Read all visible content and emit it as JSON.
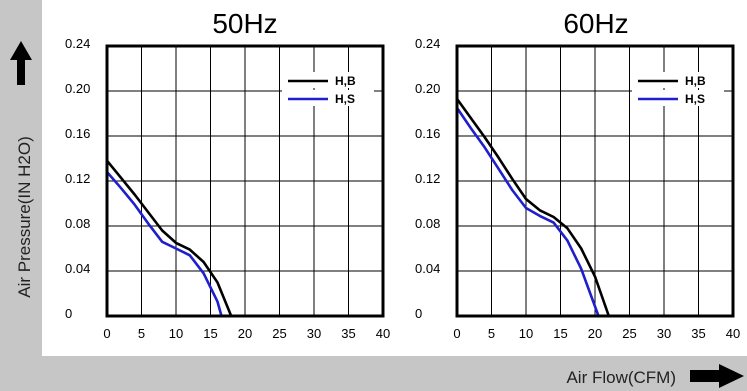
{
  "colors": {
    "band": "#c6c6c6",
    "grid": "#000000",
    "frame": "#000000",
    "series": [
      "#000000",
      "#1f1fcc"
    ],
    "arrow": "#000000"
  },
  "axis_labels": {
    "y": "Air Pressure(IN H2O)",
    "x": "Air Flow(CFM)"
  },
  "chart_data": [
    {
      "type": "line",
      "title": "50Hz",
      "xlabel": "Air Flow(CFM)",
      "ylabel": "Air Pressure(IN H2O)",
      "xlim": [
        0,
        40
      ],
      "ylim": [
        0,
        0.24
      ],
      "xticks": [
        "0",
        "5",
        "10",
        "15",
        "20",
        "25",
        "30",
        "35",
        "40"
      ],
      "yticks": [
        "0",
        "0.04",
        "0.08",
        "0.12",
        "0.16",
        "0.20",
        "0.24"
      ],
      "grid": true,
      "legend_position": "top-right",
      "series": [
        {
          "name": "H,B",
          "x": [
            0,
            2,
            4,
            6,
            8,
            10,
            12,
            14,
            16,
            18
          ],
          "y": [
            0.138,
            0.123,
            0.108,
            0.092,
            0.076,
            0.065,
            0.059,
            0.048,
            0.03,
            0
          ]
        },
        {
          "name": "H,S",
          "x": [
            0,
            2,
            4,
            6,
            8,
            10,
            12,
            14,
            16,
            16.6
          ],
          "y": [
            0.128,
            0.114,
            0.099,
            0.082,
            0.066,
            0.06,
            0.054,
            0.038,
            0.013,
            0
          ]
        }
      ]
    },
    {
      "type": "line",
      "title": "60Hz",
      "xlabel": "Air Flow(CFM)",
      "ylabel": "Air Pressure(IN H2O)",
      "xlim": [
        0,
        40
      ],
      "ylim": [
        0,
        0.24
      ],
      "xticks": [
        "0",
        "5",
        "10",
        "15",
        "20",
        "25",
        "30",
        "35",
        "40"
      ],
      "yticks": [
        "0",
        "0.04",
        "0.08",
        "0.12",
        "0.16",
        "0.20",
        "0.24"
      ],
      "grid": true,
      "legend_position": "top-right",
      "series": [
        {
          "name": "H,B",
          "x": [
            0,
            2,
            4,
            6,
            8,
            10,
            12,
            14,
            16,
            18,
            20,
            22
          ],
          "y": [
            0.193,
            0.176,
            0.159,
            0.141,
            0.122,
            0.104,
            0.094,
            0.088,
            0.078,
            0.06,
            0.035,
            0
          ]
        },
        {
          "name": "H,S",
          "x": [
            0,
            2,
            4,
            6,
            8,
            10,
            12,
            14,
            16,
            18,
            20.5
          ],
          "y": [
            0.185,
            0.167,
            0.15,
            0.131,
            0.112,
            0.096,
            0.089,
            0.083,
            0.067,
            0.042,
            0
          ]
        }
      ]
    }
  ]
}
